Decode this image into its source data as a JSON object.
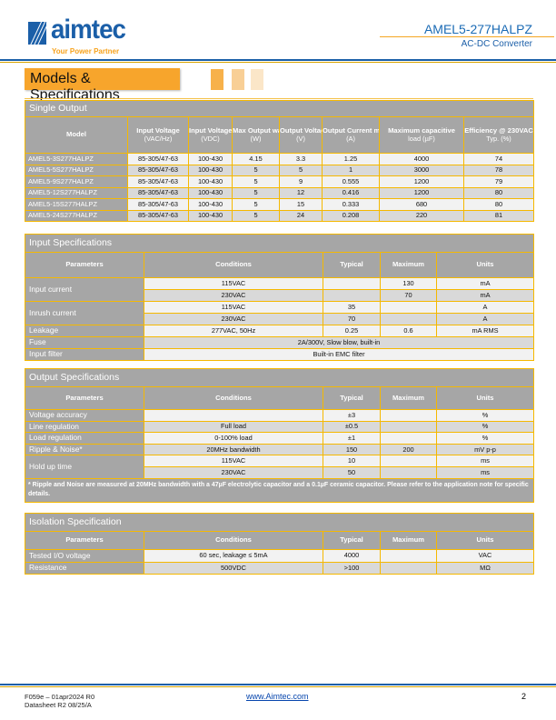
{
  "header": {
    "brand": "aimtec",
    "tagline": "Your Power Partner",
    "product": "AMEL5-277HALPZ",
    "subtitle": "AC-DC Converter",
    "section": "Models & Specifications"
  },
  "colors": {
    "brand_blue": "#1b5fa8",
    "accent_orange": "#f7a52c",
    "table_border": "#f5b800",
    "header_grey": "#a6a6a6"
  },
  "single_output": {
    "title": "Single Output",
    "headers": [
      [
        "Model",
        ""
      ],
      [
        "Input Voltage",
        "(VAC/Hz)"
      ],
      [
        "Input Voltage",
        "(VDC)"
      ],
      [
        "Max Output wattage",
        "(W)"
      ],
      [
        "Output Voltage",
        "(V)"
      ],
      [
        "Output Current max",
        "(A)"
      ],
      [
        "Maximum capacitive",
        "load (µF)"
      ],
      [
        "Efficiency @ 230VAC",
        "Typ. (%)"
      ]
    ],
    "rows": [
      [
        "AMEL5-3S277HALPZ",
        "85-305/47-63",
        "100-430",
        "4.15",
        "3.3",
        "1.25",
        "4000",
        "74"
      ],
      [
        "AMEL5-5S277HALPZ",
        "85-305/47-63",
        "100-430",
        "5",
        "5",
        "1",
        "3000",
        "78"
      ],
      [
        "AMEL5-9S277HALPZ",
        "85-305/47-63",
        "100-430",
        "5",
        "9",
        "0.555",
        "1200",
        "79"
      ],
      [
        "AMEL5-12S277HALPZ",
        "85-305/47-63",
        "100-430",
        "5",
        "12",
        "0.416",
        "1200",
        "80"
      ],
      [
        "AMEL5-15S277HALPZ",
        "85-305/47-63",
        "100-430",
        "5",
        "15",
        "0.333",
        "680",
        "80"
      ],
      [
        "AMEL5-24S277HALPZ",
        "85-305/47-63",
        "100-430",
        "5",
        "24",
        "0.208",
        "220",
        "81"
      ]
    ]
  },
  "input_spec": {
    "title": "Input Specifications",
    "headers": [
      "Parameters",
      "Conditions",
      "Typical",
      "Maximum",
      "Units"
    ],
    "groups": [
      {
        "param": "Input current",
        "rows": [
          [
            "115VAC",
            "",
            "130",
            "mA"
          ],
          [
            "230VAC",
            "",
            "70",
            "mA"
          ]
        ]
      },
      {
        "param": "Inrush current",
        "rows": [
          [
            "115VAC",
            "35",
            "",
            "A"
          ],
          [
            "230VAC",
            "70",
            "",
            "A"
          ]
        ]
      },
      {
        "param": "Leakage",
        "rows": [
          [
            "277VAC, 50Hz",
            "0.25",
            "0.6",
            "mA RMS"
          ]
        ]
      },
      {
        "param": "Fuse",
        "merged": "2A/300V, Slow blow, built-in"
      },
      {
        "param": "Input filter",
        "merged": "Built-in EMC filter"
      }
    ]
  },
  "output_spec": {
    "title": "Output Specifications",
    "headers": [
      "Parameters",
      "Conditions",
      "Typical",
      "Maximum",
      "Units"
    ],
    "groups": [
      {
        "param": "Voltage accuracy",
        "rows": [
          [
            "",
            "±3",
            "",
            "%"
          ]
        ]
      },
      {
        "param": "Line regulation",
        "rows": [
          [
            "Full load",
            "±0.5",
            "",
            "%"
          ]
        ]
      },
      {
        "param": "Load regulation",
        "rows": [
          [
            "0-100% load",
            "±1",
            "",
            "%"
          ]
        ]
      },
      {
        "param": "Ripple & Noise*",
        "rows": [
          [
            "20MHz bandwidth",
            "150",
            "200",
            "mV p-p"
          ]
        ]
      },
      {
        "param": "Hold up time",
        "rows": [
          [
            "115VAC",
            "10",
            "",
            "ms"
          ],
          [
            "230VAC",
            "50",
            "",
            "ms"
          ]
        ]
      }
    ],
    "note": "* Ripple and Noise are measured at 20MHz bandwidth with a 47µF electrolytic capacitor and a 0.1µF ceramic capacitor. Please refer to the application note for specific details."
  },
  "isolation_spec": {
    "title": "Isolation Specification",
    "headers": [
      "Parameters",
      "Conditions",
      "Typical",
      "Maximum",
      "Units"
    ],
    "groups": [
      {
        "param": "Tested I/O voltage",
        "rows": [
          [
            "60 sec, leakage ≤ 5mA",
            "4000",
            "",
            "VAC"
          ]
        ]
      },
      {
        "param": "Resistance",
        "rows": [
          [
            "500VDC",
            ">100",
            "",
            "MΩ"
          ]
        ]
      }
    ]
  },
  "footer": {
    "form": "F059e – 01apr2024 R0",
    "datasheet": "Datasheet R2 08/25/A",
    "link": "www.Aimtec.com",
    "page": "2"
  }
}
